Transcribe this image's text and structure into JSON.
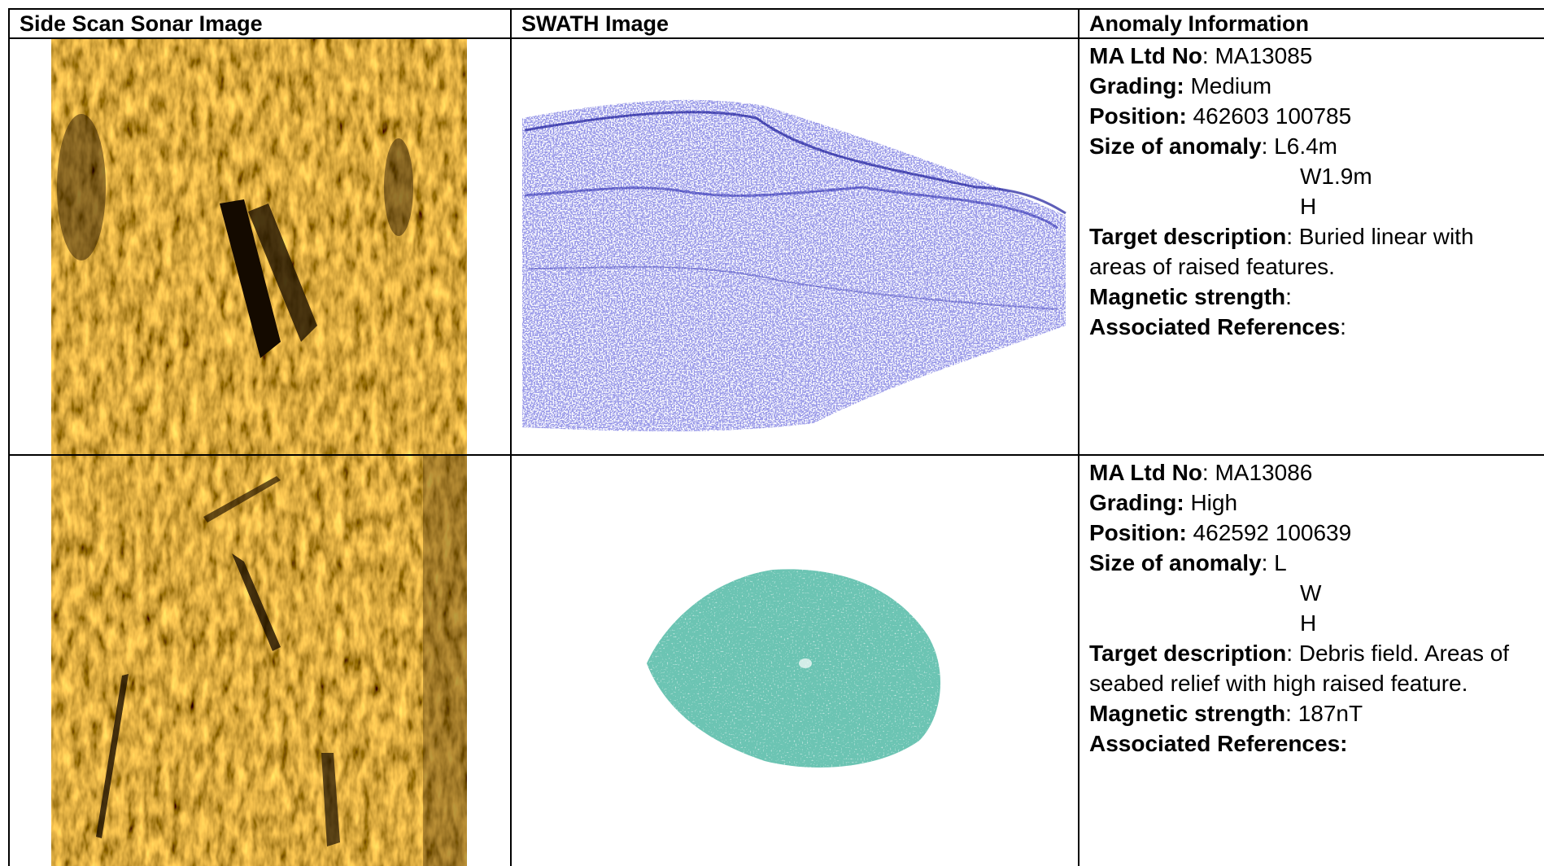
{
  "header": [
    "Side Scan Sonar Image",
    "SWATH Image",
    "Anomaly Information"
  ],
  "rows": [
    {
      "fields": [
        {
          "label": "MA Ltd No",
          "text": ": MA13085"
        },
        {
          "label": "Grading:",
          "text": " Medium"
        },
        {
          "label": "Position:",
          "text": " 462603 100785"
        },
        {
          "label": "Size of anomaly",
          "lines": [
            ": L6.4m",
            "W1.9m",
            "H"
          ]
        },
        {
          "label": "Target description",
          "text": ": Buried linear with areas of raised features."
        },
        {
          "label": "Magnetic strength",
          "text": ":"
        },
        {
          "label": "Associated References",
          "text": ":"
        }
      ]
    },
    {
      "fields": [
        {
          "label": "MA Ltd No",
          "text": ": MA13086"
        },
        {
          "label": "Grading:",
          "text": " High"
        },
        {
          "label": "Position:",
          "text": " 462592 100639"
        },
        {
          "label": "Size of anomaly",
          "lines": [
            ": L",
            "W",
            "H"
          ]
        },
        {
          "label": "Target description",
          "text": ": Debris field. Areas of seabed relief with high raised feature."
        },
        {
          "label": "Magnetic strength",
          "text": ": 187nT"
        },
        {
          "label": "Associated References:"
        }
      ]
    }
  ]
}
